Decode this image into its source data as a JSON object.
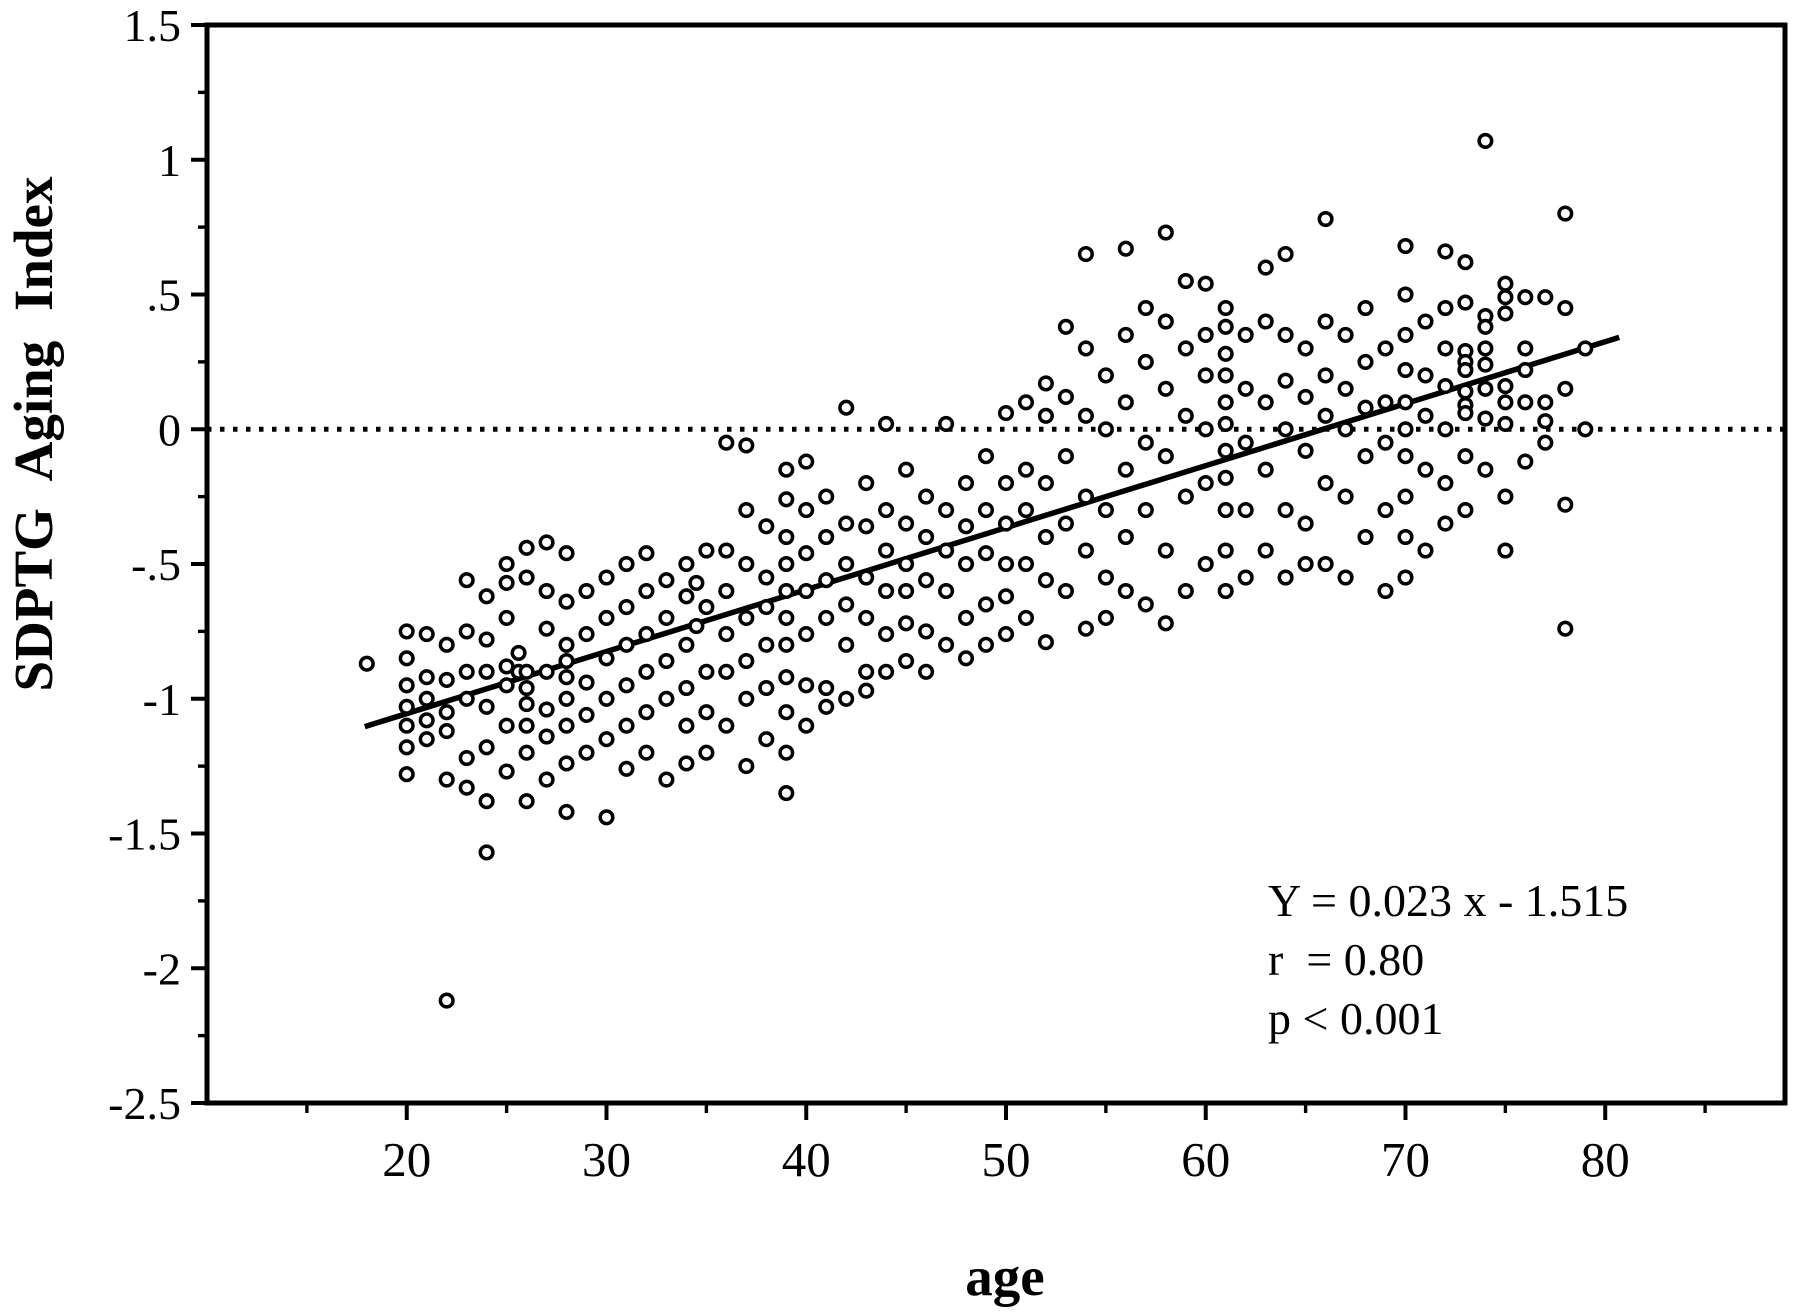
{
  "figure": {
    "background": "#ffffff",
    "ink": "#000000"
  },
  "chart_data": {
    "type": "scatter",
    "title": "",
    "xlabel": "age",
    "ylabel": "SDPTG Aging Index",
    "xlim": [
      10,
      89
    ],
    "ylim": [
      -2.5,
      1.5
    ],
    "grid": "off",
    "legend": "none",
    "x_ticks": {
      "values": [
        20,
        30,
        40,
        50,
        60,
        70,
        80
      ],
      "labels": [
        "20",
        "30",
        "40",
        "50",
        "60",
        "70",
        "80"
      ],
      "minor": [
        15,
        25,
        35,
        45,
        55,
        65,
        75,
        85
      ]
    },
    "y_ticks": {
      "values": [
        1.5,
        1,
        0.5,
        0,
        -0.5,
        -1,
        -1.5,
        -2,
        -2.5
      ],
      "labels": [
        "1.5",
        "1",
        ".5",
        "0",
        "-.5",
        "-1",
        "-1.5",
        "-2",
        "-2.5"
      ],
      "minor": [
        1.25,
        0.75,
        0.25,
        -0.25,
        -0.75,
        -1.25,
        -1.75,
        -2.25
      ]
    },
    "zero_reference_line": {
      "y": 0,
      "style": "dotted"
    },
    "regression": {
      "equation": "Y = 0.023 x - 1.515",
      "slope": 0.023,
      "intercept": -1.515,
      "x_start": 17.9,
      "x_end": 80.7
    },
    "annotation": {
      "lines": [
        "Y = 0.023 x - 1.515",
        "r  = 0.80",
        "p < 0.001"
      ]
    },
    "points": [
      [
        18,
        -0.87
      ],
      [
        20,
        -0.75
      ],
      [
        20,
        -0.85
      ],
      [
        20,
        -0.95
      ],
      [
        20,
        -1.03
      ],
      [
        20,
        -1.1
      ],
      [
        20,
        -1.18
      ],
      [
        20,
        -1.28
      ],
      [
        21,
        -0.76
      ],
      [
        21,
        -0.92
      ],
      [
        21,
        -1.0
      ],
      [
        21,
        -1.08
      ],
      [
        21,
        -1.15
      ],
      [
        22,
        -0.8
      ],
      [
        22,
        -0.93
      ],
      [
        22,
        -1.05
      ],
      [
        22,
        -1.12
      ],
      [
        22,
        -1.3
      ],
      [
        22,
        -2.12
      ],
      [
        23,
        -0.56
      ],
      [
        23,
        -0.75
      ],
      [
        23,
        -0.9
      ],
      [
        23,
        -1.0
      ],
      [
        23,
        -1.22
      ],
      [
        23,
        -1.33
      ],
      [
        24,
        -0.62
      ],
      [
        24,
        -0.78
      ],
      [
        24,
        -0.9
      ],
      [
        24,
        -1.03
      ],
      [
        24,
        -1.18
      ],
      [
        24,
        -1.38
      ],
      [
        24,
        -1.57
      ],
      [
        25,
        -0.5
      ],
      [
        25,
        -0.57
      ],
      [
        25,
        -0.7
      ],
      [
        25,
        -0.88
      ],
      [
        25,
        -0.95
      ],
      [
        25,
        -1.1
      ],
      [
        25,
        -1.27
      ],
      [
        25.6,
        -0.83
      ],
      [
        25.6,
        -0.9
      ],
      [
        26,
        -0.44
      ],
      [
        26,
        -0.55
      ],
      [
        26,
        -0.9
      ],
      [
        26,
        -0.96
      ],
      [
        26,
        -1.02
      ],
      [
        26,
        -1.1
      ],
      [
        26,
        -1.2
      ],
      [
        26,
        -1.38
      ],
      [
        27,
        -0.42
      ],
      [
        27,
        -0.6
      ],
      [
        27,
        -0.74
      ],
      [
        27,
        -0.9
      ],
      [
        27,
        -1.04
      ],
      [
        27,
        -1.14
      ],
      [
        27,
        -1.3
      ],
      [
        28,
        -0.46
      ],
      [
        28,
        -0.64
      ],
      [
        28,
        -0.8
      ],
      [
        28,
        -0.86
      ],
      [
        28,
        -0.92
      ],
      [
        28,
        -1.0
      ],
      [
        28,
        -1.1
      ],
      [
        28,
        -1.24
      ],
      [
        28,
        -1.42
      ],
      [
        29,
        -0.6
      ],
      [
        29,
        -0.76
      ],
      [
        29,
        -0.94
      ],
      [
        29,
        -1.06
      ],
      [
        29,
        -1.2
      ],
      [
        30,
        -0.55
      ],
      [
        30,
        -0.7
      ],
      [
        30,
        -0.85
      ],
      [
        30,
        -1.0
      ],
      [
        30,
        -1.15
      ],
      [
        30,
        -1.44
      ],
      [
        31,
        -0.5
      ],
      [
        31,
        -0.66
      ],
      [
        31,
        -0.8
      ],
      [
        31,
        -0.95
      ],
      [
        31,
        -1.1
      ],
      [
        31,
        -1.26
      ],
      [
        32,
        -0.46
      ],
      [
        32,
        -0.6
      ],
      [
        32,
        -0.76
      ],
      [
        32,
        -0.9
      ],
      [
        32,
        -1.05
      ],
      [
        32,
        -1.2
      ],
      [
        33,
        -0.56
      ],
      [
        33,
        -0.7
      ],
      [
        33,
        -0.86
      ],
      [
        33,
        -1.0
      ],
      [
        33,
        -1.3
      ],
      [
        34,
        -0.5
      ],
      [
        34,
        -0.62
      ],
      [
        34,
        -0.8
      ],
      [
        34,
        -0.96
      ],
      [
        34,
        -1.1
      ],
      [
        34,
        -1.24
      ],
      [
        34.5,
        -0.57
      ],
      [
        34.5,
        -0.73
      ],
      [
        35,
        -0.45
      ],
      [
        35,
        -0.66
      ],
      [
        35,
        -0.9
      ],
      [
        35,
        -1.05
      ],
      [
        35,
        -1.2
      ],
      [
        36,
        -0.05
      ],
      [
        36,
        -0.45
      ],
      [
        36,
        -0.6
      ],
      [
        36,
        -0.76
      ],
      [
        36,
        -0.9
      ],
      [
        36,
        -1.1
      ],
      [
        37,
        -0.06
      ],
      [
        37,
        -0.3
      ],
      [
        37,
        -0.5
      ],
      [
        37,
        -0.7
      ],
      [
        37,
        -0.86
      ],
      [
        37,
        -1.0
      ],
      [
        37,
        -1.25
      ],
      [
        38,
        -0.36
      ],
      [
        38,
        -0.55
      ],
      [
        38,
        -0.66
      ],
      [
        38,
        -0.8
      ],
      [
        38,
        -0.96
      ],
      [
        38,
        -1.15
      ],
      [
        39,
        -0.15
      ],
      [
        39,
        -0.26
      ],
      [
        39,
        -0.4
      ],
      [
        39,
        -0.5
      ],
      [
        39,
        -0.6
      ],
      [
        39,
        -0.7
      ],
      [
        39,
        -0.8
      ],
      [
        39,
        -0.92
      ],
      [
        39,
        -1.05
      ],
      [
        39,
        -1.2
      ],
      [
        39,
        -1.35
      ],
      [
        40,
        -0.12
      ],
      [
        40,
        -0.3
      ],
      [
        40,
        -0.46
      ],
      [
        40,
        -0.6
      ],
      [
        40,
        -0.76
      ],
      [
        40,
        -0.95
      ],
      [
        40,
        -1.1
      ],
      [
        41,
        -0.25
      ],
      [
        41,
        -0.4
      ],
      [
        41,
        -0.56
      ],
      [
        41,
        -0.7
      ],
      [
        41,
        -0.96
      ],
      [
        41,
        -1.03
      ],
      [
        42,
        0.08
      ],
      [
        42,
        -0.35
      ],
      [
        42,
        -0.5
      ],
      [
        42,
        -0.65
      ],
      [
        42,
        -0.8
      ],
      [
        42,
        -1.0
      ],
      [
        43,
        -0.2
      ],
      [
        43,
        -0.36
      ],
      [
        43,
        -0.55
      ],
      [
        43,
        -0.7
      ],
      [
        43,
        -0.9
      ],
      [
        43,
        -0.97
      ],
      [
        44,
        0.02
      ],
      [
        44,
        -0.3
      ],
      [
        44,
        -0.45
      ],
      [
        44,
        -0.6
      ],
      [
        44,
        -0.76
      ],
      [
        44,
        -0.9
      ],
      [
        45,
        -0.15
      ],
      [
        45,
        -0.35
      ],
      [
        45,
        -0.5
      ],
      [
        45,
        -0.6
      ],
      [
        45,
        -0.72
      ],
      [
        45,
        -0.86
      ],
      [
        46,
        -0.25
      ],
      [
        46,
        -0.4
      ],
      [
        46,
        -0.56
      ],
      [
        46,
        -0.75
      ],
      [
        46,
        -0.9
      ],
      [
        47,
        0.02
      ],
      [
        47,
        -0.3
      ],
      [
        47,
        -0.45
      ],
      [
        47,
        -0.6
      ],
      [
        47,
        -0.8
      ],
      [
        48,
        -0.2
      ],
      [
        48,
        -0.36
      ],
      [
        48,
        -0.5
      ],
      [
        48,
        -0.7
      ],
      [
        48,
        -0.85
      ],
      [
        49,
        -0.1
      ],
      [
        49,
        -0.3
      ],
      [
        49,
        -0.46
      ],
      [
        49,
        -0.65
      ],
      [
        49,
        -0.8
      ],
      [
        50,
        0.06
      ],
      [
        50,
        -0.2
      ],
      [
        50,
        -0.35
      ],
      [
        50,
        -0.5
      ],
      [
        50,
        -0.62
      ],
      [
        50,
        -0.76
      ],
      [
        51,
        0.1
      ],
      [
        51,
        -0.15
      ],
      [
        51,
        -0.3
      ],
      [
        51,
        -0.5
      ],
      [
        51,
        -0.7
      ],
      [
        52,
        0.17
      ],
      [
        52,
        0.05
      ],
      [
        52,
        -0.2
      ],
      [
        52,
        -0.4
      ],
      [
        52,
        -0.56
      ],
      [
        52,
        -0.79
      ],
      [
        53,
        0.38
      ],
      [
        53,
        0.12
      ],
      [
        53,
        -0.1
      ],
      [
        53,
        -0.35
      ],
      [
        53,
        -0.6
      ],
      [
        54,
        0.65
      ],
      [
        54,
        0.3
      ],
      [
        54,
        0.05
      ],
      [
        54,
        -0.25
      ],
      [
        54,
        -0.45
      ],
      [
        54,
        -0.74
      ],
      [
        55,
        0.2
      ],
      [
        55,
        0.0
      ],
      [
        55,
        -0.3
      ],
      [
        55,
        -0.55
      ],
      [
        55,
        -0.7
      ],
      [
        56,
        0.67
      ],
      [
        56,
        0.35
      ],
      [
        56,
        0.1
      ],
      [
        56,
        -0.15
      ],
      [
        56,
        -0.4
      ],
      [
        56,
        -0.6
      ],
      [
        57,
        0.45
      ],
      [
        57,
        0.25
      ],
      [
        57,
        -0.05
      ],
      [
        57,
        -0.3
      ],
      [
        57,
        -0.65
      ],
      [
        58,
        0.73
      ],
      [
        58,
        0.4
      ],
      [
        58,
        0.15
      ],
      [
        58,
        -0.1
      ],
      [
        58,
        -0.45
      ],
      [
        58,
        -0.72
      ],
      [
        59,
        0.55
      ],
      [
        59,
        0.3
      ],
      [
        59,
        0.05
      ],
      [
        59,
        -0.25
      ],
      [
        59,
        -0.6
      ],
      [
        60,
        0.54
      ],
      [
        60,
        0.35
      ],
      [
        60,
        0.2
      ],
      [
        60,
        0.0
      ],
      [
        60,
        -0.2
      ],
      [
        60,
        -0.5
      ],
      [
        61,
        0.45
      ],
      [
        61,
        0.38
      ],
      [
        61,
        0.28
      ],
      [
        61,
        0.2
      ],
      [
        61,
        0.1
      ],
      [
        61,
        0.02
      ],
      [
        61,
        -0.08
      ],
      [
        61,
        -0.18
      ],
      [
        61,
        -0.3
      ],
      [
        61,
        -0.45
      ],
      [
        61,
        -0.6
      ],
      [
        62,
        0.35
      ],
      [
        62,
        0.15
      ],
      [
        62,
        -0.05
      ],
      [
        62,
        -0.3
      ],
      [
        62,
        -0.55
      ],
      [
        63,
        0.6
      ],
      [
        63,
        0.4
      ],
      [
        63,
        0.1
      ],
      [
        63,
        -0.15
      ],
      [
        63,
        -0.45
      ],
      [
        64,
        0.65
      ],
      [
        64,
        0.35
      ],
      [
        64,
        0.18
      ],
      [
        64,
        0.0
      ],
      [
        64,
        -0.3
      ],
      [
        64,
        -0.55
      ],
      [
        65,
        0.3
      ],
      [
        65,
        0.12
      ],
      [
        65,
        -0.08
      ],
      [
        65,
        -0.35
      ],
      [
        65,
        -0.5
      ],
      [
        66,
        0.78
      ],
      [
        66,
        0.4
      ],
      [
        66,
        0.2
      ],
      [
        66,
        0.05
      ],
      [
        66,
        -0.2
      ],
      [
        66,
        -0.5
      ],
      [
        67,
        0.35
      ],
      [
        67,
        0.15
      ],
      [
        67,
        0.0
      ],
      [
        67,
        -0.25
      ],
      [
        67,
        -0.55
      ],
      [
        68,
        0.45
      ],
      [
        68,
        0.25
      ],
      [
        68,
        0.08
      ],
      [
        68,
        -0.1
      ],
      [
        68,
        -0.4
      ],
      [
        69,
        0.3
      ],
      [
        69,
        0.1
      ],
      [
        69,
        -0.05
      ],
      [
        69,
        -0.3
      ],
      [
        69,
        -0.6
      ],
      [
        70,
        0.68
      ],
      [
        70,
        0.5
      ],
      [
        70,
        0.35
      ],
      [
        70,
        0.22
      ],
      [
        70,
        0.1
      ],
      [
        70,
        0.0
      ],
      [
        70,
        -0.1
      ],
      [
        70,
        -0.25
      ],
      [
        70,
        -0.4
      ],
      [
        70,
        -0.55
      ],
      [
        71,
        0.4
      ],
      [
        71,
        0.2
      ],
      [
        71,
        0.05
      ],
      [
        71,
        -0.15
      ],
      [
        71,
        -0.45
      ],
      [
        72,
        0.66
      ],
      [
        72,
        0.45
      ],
      [
        72,
        0.3
      ],
      [
        72,
        0.16
      ],
      [
        72,
        0.0
      ],
      [
        72,
        -0.2
      ],
      [
        72,
        -0.35
      ],
      [
        73,
        0.62
      ],
      [
        73,
        0.47
      ],
      [
        73,
        0.29
      ],
      [
        73,
        0.25
      ],
      [
        73,
        0.22
      ],
      [
        73,
        0.14
      ],
      [
        73,
        0.09
      ],
      [
        73,
        0.06
      ],
      [
        73,
        -0.1
      ],
      [
        73,
        -0.3
      ],
      [
        74,
        1.07
      ],
      [
        74,
        0.42
      ],
      [
        74,
        0.38
      ],
      [
        74,
        0.3
      ],
      [
        74,
        0.24
      ],
      [
        74,
        0.15
      ],
      [
        74,
        0.04
      ],
      [
        74,
        -0.15
      ],
      [
        75,
        0.54
      ],
      [
        75,
        0.49
      ],
      [
        75,
        0.43
      ],
      [
        75,
        0.16
      ],
      [
        75,
        0.1
      ],
      [
        75,
        0.02
      ],
      [
        75,
        -0.25
      ],
      [
        75,
        -0.45
      ],
      [
        76,
        0.49
      ],
      [
        76,
        0.3
      ],
      [
        76,
        0.22
      ],
      [
        76,
        0.1
      ],
      [
        76,
        -0.12
      ],
      [
        77,
        0.49
      ],
      [
        77,
        0.1
      ],
      [
        77,
        0.03
      ],
      [
        77,
        -0.05
      ],
      [
        78,
        0.8
      ],
      [
        78,
        0.45
      ],
      [
        78,
        0.15
      ],
      [
        78,
        -0.28
      ],
      [
        78,
        -0.74
      ],
      [
        79,
        0.3
      ],
      [
        79,
        0.0
      ]
    ]
  }
}
